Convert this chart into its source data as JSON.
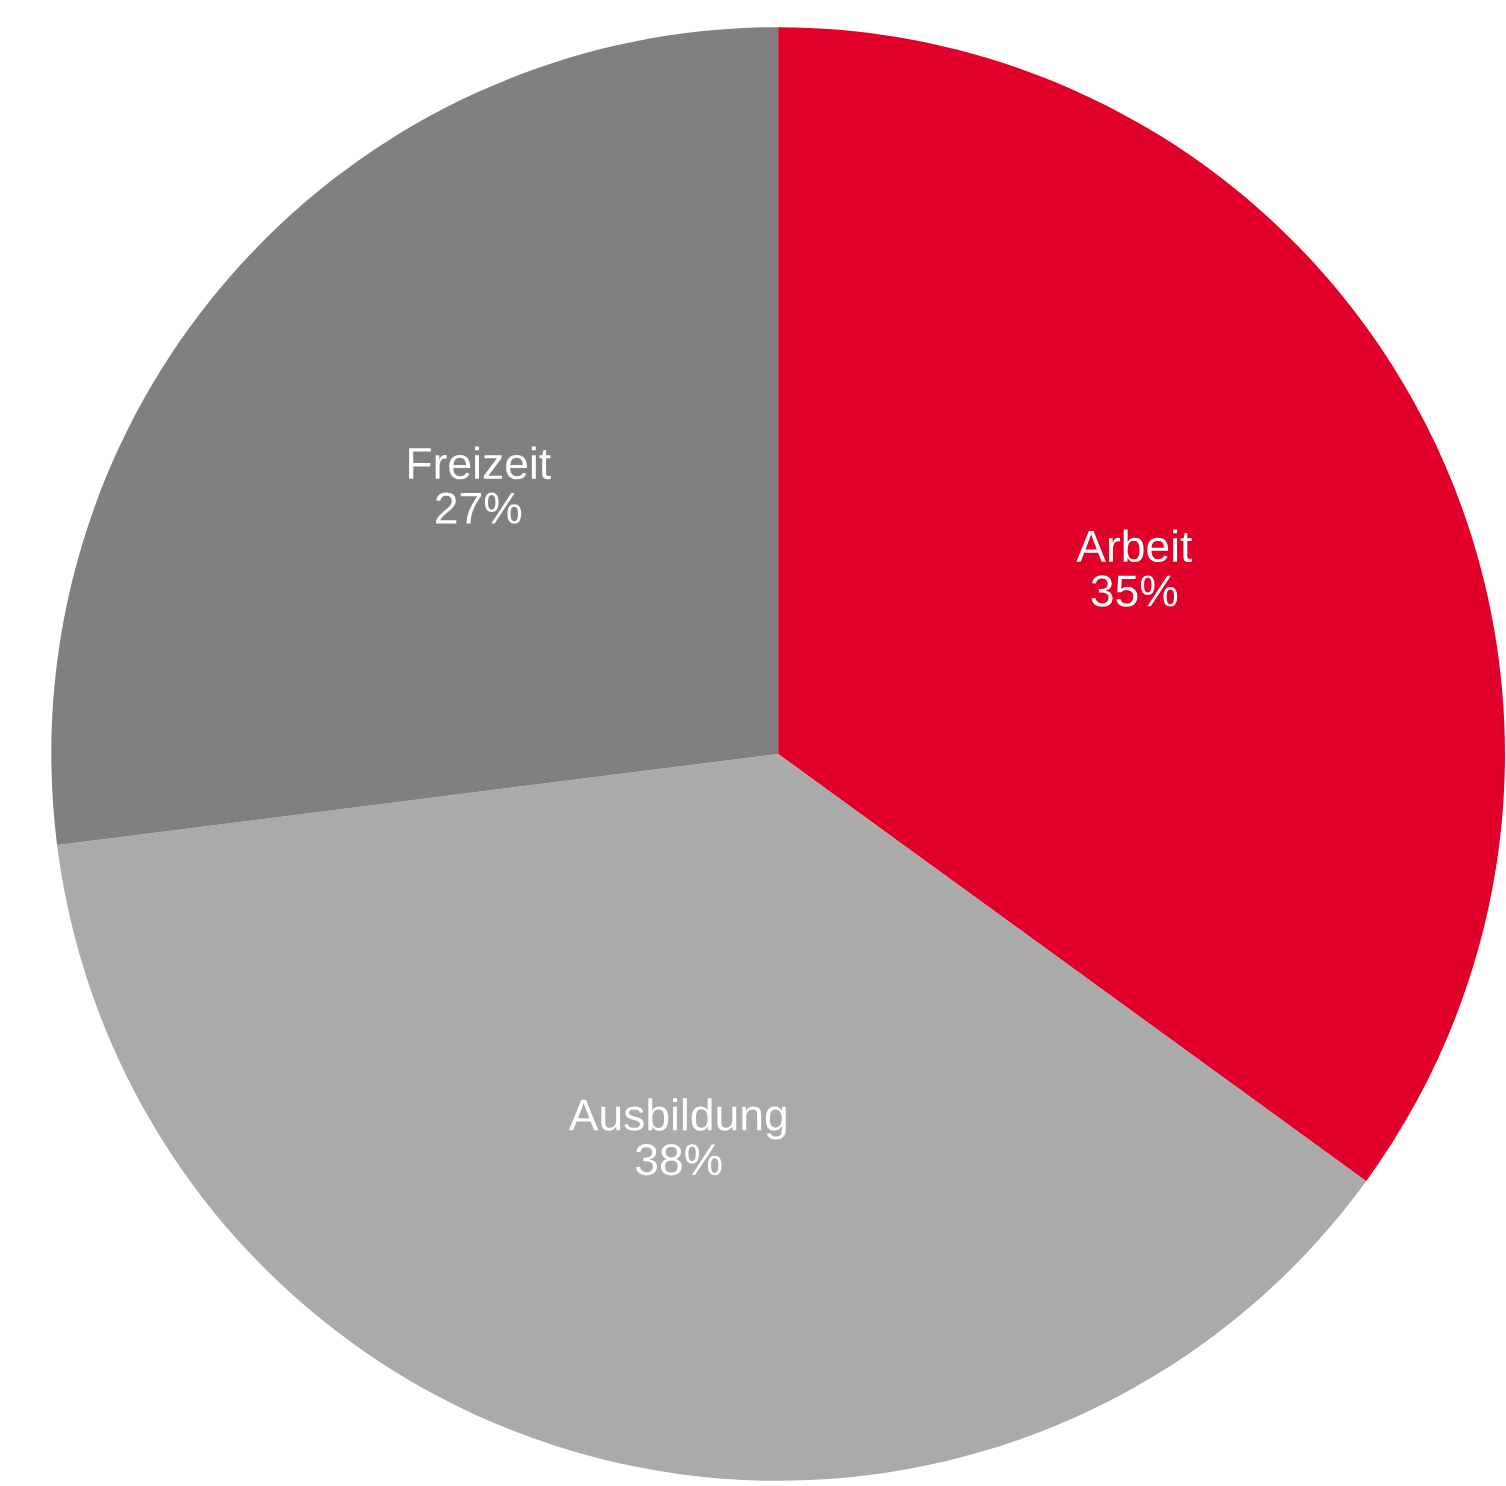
{
  "chart_data": {
    "type": "pie",
    "categories": [
      "Arbeit",
      "Ausbildung",
      "Freizeit"
    ],
    "values": [
      35,
      38,
      27
    ],
    "value_labels": [
      "35%",
      "38%",
      "27%"
    ],
    "colors": [
      "#e0002a",
      "#aaaaaa",
      "#808080"
    ]
  }
}
